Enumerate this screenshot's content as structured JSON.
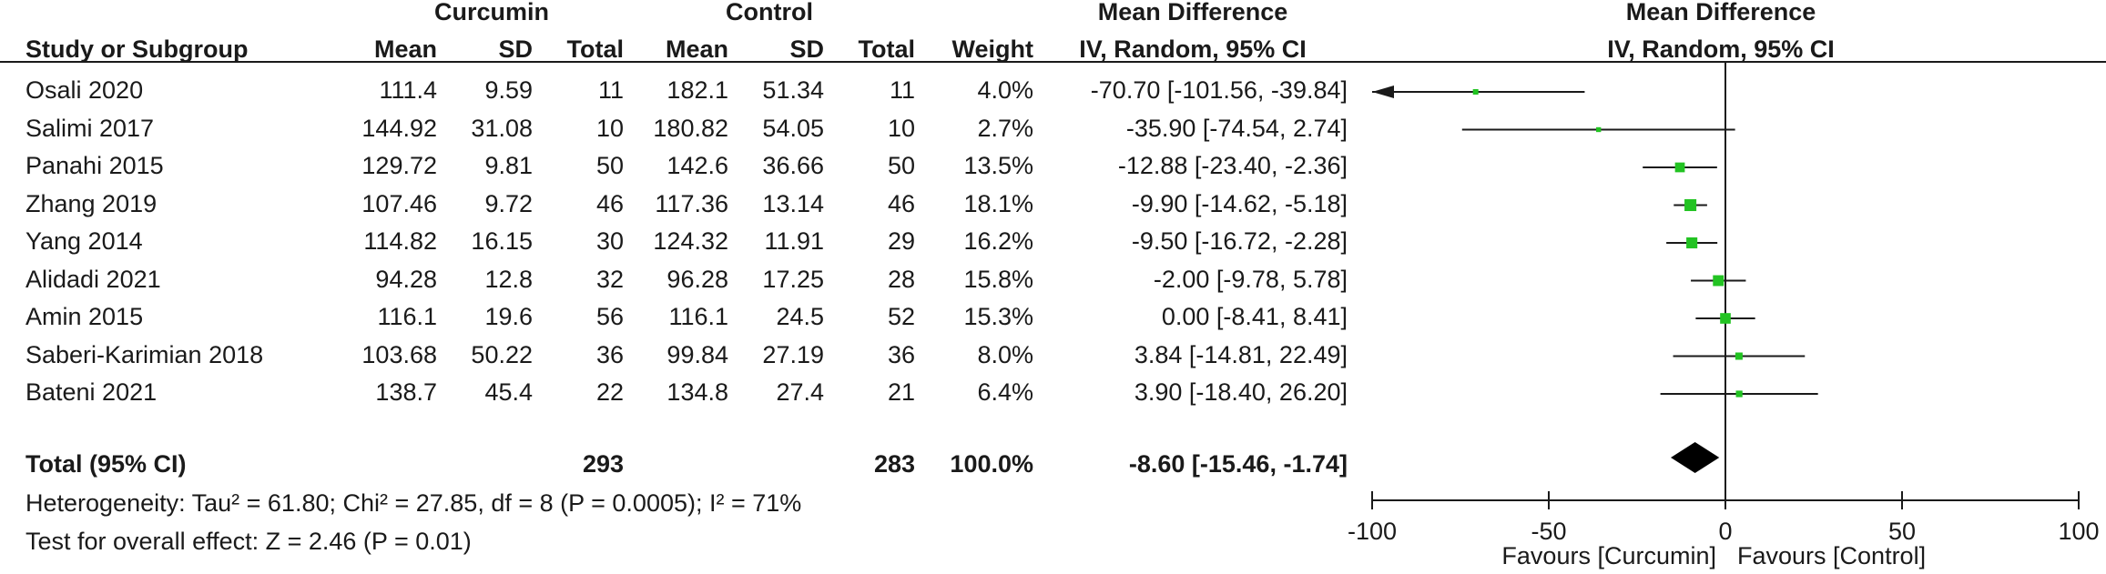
{
  "headers": {
    "group1": "Curcumin",
    "group2": "Control",
    "md_left_title": "Mean Difference",
    "md_left_sub": "IV, Random, 95% CI",
    "md_right_title": "Mean Difference",
    "md_right_sub": "IV, Random, 95% CI",
    "study": "Study or Subgroup",
    "mean1": "Mean",
    "sd1": "SD",
    "total1": "Total",
    "mean2": "Mean",
    "sd2": "SD",
    "total2": "Total",
    "weight": "Weight"
  },
  "studies": [
    {
      "name": "Osali  2020",
      "mean1": "111.4",
      "sd1": "9.59",
      "n1": "11",
      "mean2": "182.1",
      "sd2": "51.34",
      "n2": "11",
      "weight": "4.0%",
      "ci": "-70.70 [-101.56, -39.84]"
    },
    {
      "name": "Salimi  2017",
      "mean1": "144.92",
      "sd1": "31.08",
      "n1": "10",
      "mean2": "180.82",
      "sd2": "54.05",
      "n2": "10",
      "weight": "2.7%",
      "ci": "-35.90 [-74.54, 2.74]"
    },
    {
      "name": "Panahi  2015",
      "mean1": "129.72",
      "sd1": "9.81",
      "n1": "50",
      "mean2": "142.6",
      "sd2": "36.66",
      "n2": "50",
      "weight": "13.5%",
      "ci": "-12.88 [-23.40, -2.36]"
    },
    {
      "name": "Zhang  2019",
      "mean1": "107.46",
      "sd1": "9.72",
      "n1": "46",
      "mean2": "117.36",
      "sd2": "13.14",
      "n2": "46",
      "weight": "18.1%",
      "ci": "-9.90 [-14.62, -5.18]"
    },
    {
      "name": "Yang  2014",
      "mean1": "114.82",
      "sd1": "16.15",
      "n1": "30",
      "mean2": "124.32",
      "sd2": "11.91",
      "n2": "29",
      "weight": "16.2%",
      "ci": "-9.50 [-16.72, -2.28]"
    },
    {
      "name": "Alidadi  2021",
      "mean1": "94.28",
      "sd1": "12.8",
      "n1": "32",
      "mean2": "96.28",
      "sd2": "17.25",
      "n2": "28",
      "weight": "15.8%",
      "ci": "-2.00 [-9.78, 5.78]"
    },
    {
      "name": "Amin  2015",
      "mean1": "116.1",
      "sd1": "19.6",
      "n1": "56",
      "mean2": "116.1",
      "sd2": "24.5",
      "n2": "52",
      "weight": "15.3%",
      "ci": "0.00 [-8.41, 8.41]"
    },
    {
      "name": "Saberi-Karimian  2018",
      "mean1": "103.68",
      "sd1": "50.22",
      "n1": "36",
      "mean2": "99.84",
      "sd2": "27.19",
      "n2": "36",
      "weight": "8.0%",
      "ci": "3.84 [-14.81, 22.49]"
    },
    {
      "name": "Bateni  2021",
      "mean1": "138.7",
      "sd1": "45.4",
      "n1": "22",
      "mean2": "134.8",
      "sd2": "27.4",
      "n2": "21",
      "weight": "6.4%",
      "ci": "3.90 [-18.40, 26.20]"
    }
  ],
  "total": {
    "label": "Total (95% CI)",
    "n1": "293",
    "n2": "283",
    "weight": "100.0%",
    "ci": "-8.60 [-15.46, -1.74]"
  },
  "heterogeneity": "Heterogeneity: Tau² = 61.80; Chi² = 27.85, df = 8 (P = 0.0005); I² = 71%",
  "overall_effect": "Test for overall effect: Z = 2.46 (P = 0.01)",
  "axis": {
    "favours_left": "Favours [Curcumin]",
    "favours_right": "Favours [Control]"
  },
  "colors": {
    "marker": "#22c322",
    "line": "#1a1a1a",
    "diamond": "#000000"
  },
  "chart_data": {
    "type": "forest",
    "xlim": [
      -100,
      100
    ],
    "ticks": [
      -100,
      -50,
      0,
      50,
      100
    ],
    "tick_labels": [
      "-100",
      "-50",
      "0",
      "50",
      "100"
    ],
    "points": [
      {
        "study": "Osali  2020",
        "md": -70.7,
        "lo": -101.56,
        "hi": -39.84,
        "weight": 4.0,
        "clipped_left": true
      },
      {
        "study": "Salimi  2017",
        "md": -35.9,
        "lo": -74.54,
        "hi": 2.74,
        "weight": 2.7
      },
      {
        "study": "Panahi  2015",
        "md": -12.88,
        "lo": -23.4,
        "hi": -2.36,
        "weight": 13.5
      },
      {
        "study": "Zhang  2019",
        "md": -9.9,
        "lo": -14.62,
        "hi": -5.18,
        "weight": 18.1
      },
      {
        "study": "Yang  2014",
        "md": -9.5,
        "lo": -16.72,
        "hi": -2.28,
        "weight": 16.2
      },
      {
        "study": "Alidadi  2021",
        "md": -2.0,
        "lo": -9.78,
        "hi": 5.78,
        "weight": 15.8
      },
      {
        "study": "Amin  2015",
        "md": 0.0,
        "lo": -8.41,
        "hi": 8.41,
        "weight": 15.3
      },
      {
        "study": "Saberi-Karimian  2018",
        "md": 3.84,
        "lo": -14.81,
        "hi": 22.49,
        "weight": 8.0
      },
      {
        "study": "Bateni  2021",
        "md": 3.9,
        "lo": -18.4,
        "hi": 26.2,
        "weight": 6.4
      }
    ],
    "pooled": {
      "md": -8.6,
      "lo": -15.46,
      "hi": -1.74
    }
  }
}
